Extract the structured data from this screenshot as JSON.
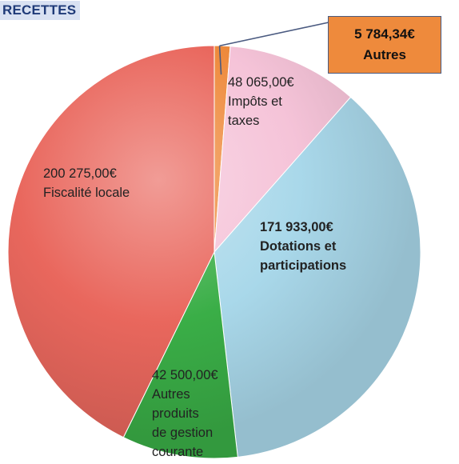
{
  "title": "RECETTES",
  "colors": {
    "fiscalite": "#e9675d",
    "impots": "#f5c3d8",
    "dotations": "#a9d8ea",
    "gestion": "#3aae47",
    "autres": "#ee8a3c"
  },
  "chart_data": {
    "type": "pie",
    "title": "RECETTES",
    "slices": [
      {
        "name": "Autres",
        "value": 5784.34,
        "value_label": "5 784,34€",
        "label_lines": [
          "Autres"
        ],
        "color": "#ee8a3c"
      },
      {
        "name": "Impôts et taxes",
        "value": 48065.0,
        "value_label": "48 065,00€",
        "label_lines": [
          "Impôts et",
          "taxes"
        ],
        "color": "#f5c3d8"
      },
      {
        "name": "Dotations et participations",
        "value": 171933.0,
        "value_label": "171 933,00€",
        "label_lines": [
          "Dotations et",
          "participations"
        ],
        "color": "#a9d8ea"
      },
      {
        "name": "Autres produits de gestion courante",
        "value": 42500.0,
        "value_label": "42 500,00€",
        "label_lines": [
          "Autres",
          "produits",
          "de gestion",
          "courante"
        ],
        "color": "#3aae47"
      },
      {
        "name": "Fiscalité locale",
        "value": 200275.0,
        "value_label": "200 275,00€",
        "label_lines": [
          "Fiscalité locale"
        ],
        "color": "#e9675d"
      }
    ]
  }
}
